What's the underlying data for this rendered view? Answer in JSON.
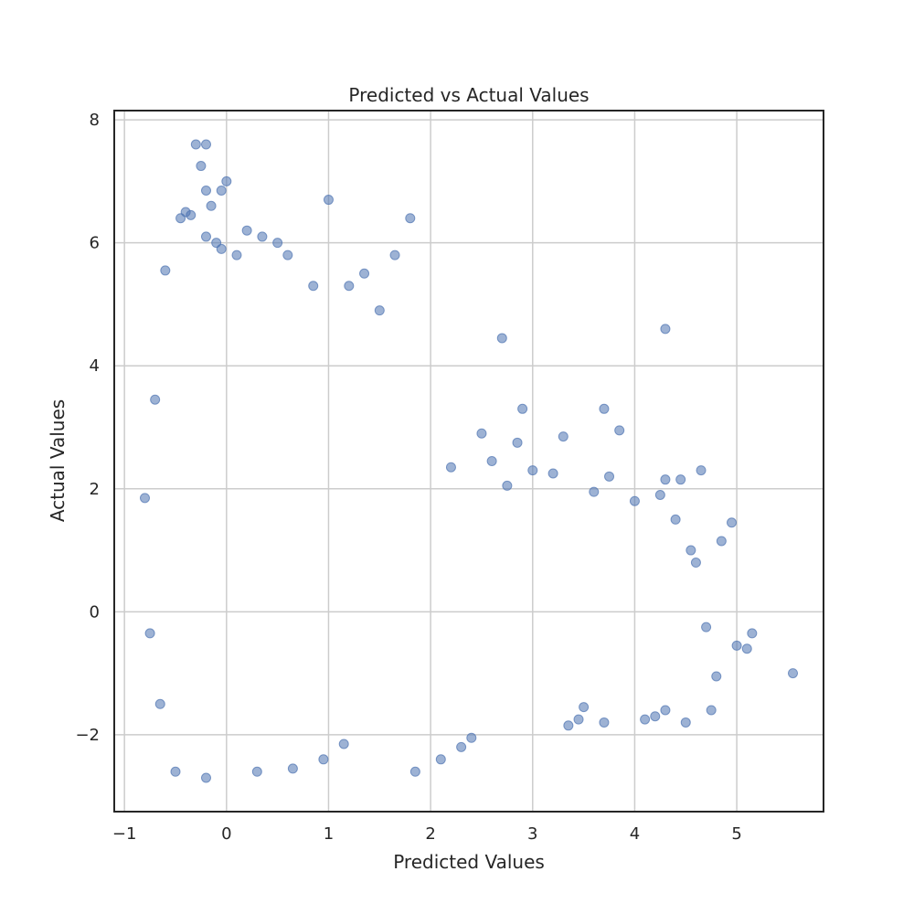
{
  "chart_data": {
    "type": "scatter",
    "title": "Predicted vs Actual Values",
    "xlabel": "Predicted Values",
    "ylabel": "Actual Values",
    "xlim": [
      -1.1,
      5.85
    ],
    "ylim": [
      -3.25,
      8.15
    ],
    "x_ticks": [
      -1,
      0,
      1,
      2,
      3,
      4,
      5
    ],
    "x_tick_labels": [
      "−1",
      "0",
      "1",
      "2",
      "3",
      "4",
      "5"
    ],
    "y_ticks": [
      -2,
      0,
      2,
      4,
      6,
      8
    ],
    "y_tick_labels": [
      "−2",
      "0",
      "2",
      "4",
      "6",
      "8"
    ],
    "grid": true,
    "marker_color": "#4c72b0",
    "marker_alpha": 0.55,
    "series": [
      {
        "x": [
          -0.3,
          -0.2,
          -0.25,
          -0.2,
          -0.45,
          -0.4,
          -0.35,
          -0.1,
          -0.05,
          -0.2,
          -0.15,
          0.0,
          -0.05,
          0.1,
          0.2,
          0.35,
          0.5,
          0.6,
          0.85,
          1.0,
          1.2,
          1.35,
          1.5,
          1.8,
          1.65,
          2.7,
          4.3,
          2.9,
          3.3,
          3.7,
          3.85,
          4.65,
          4.3,
          4.45,
          4.95,
          5.15,
          4.85,
          5.0,
          5.1,
          5.55,
          4.75,
          4.8,
          -0.6,
          -0.7,
          -0.8,
          -0.75,
          -0.65,
          -0.5,
          -0.2,
          0.3,
          0.65,
          0.95,
          1.15,
          1.85,
          2.1,
          2.3,
          2.4,
          3.35,
          3.45,
          3.5,
          3.7,
          4.1,
          4.2,
          4.5,
          4.3,
          2.2,
          2.5,
          2.6,
          2.75,
          2.85,
          3.0,
          3.2,
          3.6,
          3.75,
          4.0,
          4.25,
          4.4,
          4.55,
          4.6,
          4.7
        ],
        "y": [
          7.6,
          7.6,
          7.25,
          6.85,
          6.4,
          6.5,
          6.45,
          6.0,
          5.9,
          6.1,
          6.6,
          7.0,
          6.85,
          5.8,
          6.2,
          6.1,
          6.0,
          5.8,
          5.3,
          6.7,
          5.3,
          5.5,
          4.9,
          6.4,
          5.8,
          4.45,
          4.6,
          3.3,
          2.85,
          3.3,
          2.95,
          2.3,
          2.15,
          2.15,
          1.45,
          -0.35,
          1.15,
          -0.55,
          -0.6,
          -1.0,
          -1.6,
          -1.05,
          5.55,
          3.45,
          1.85,
          -0.35,
          -1.5,
          -2.6,
          -2.7,
          -2.6,
          -2.55,
          -2.4,
          -2.15,
          -2.6,
          -2.4,
          -2.2,
          -2.05,
          -1.85,
          -1.75,
          -1.55,
          -1.8,
          -1.75,
          -1.7,
          -1.8,
          -1.6,
          2.35,
          2.9,
          2.45,
          2.05,
          2.75,
          2.3,
          2.25,
          1.95,
          2.2,
          1.8,
          1.9,
          1.5,
          1.0,
          0.8,
          -0.25
        ]
      }
    ]
  }
}
